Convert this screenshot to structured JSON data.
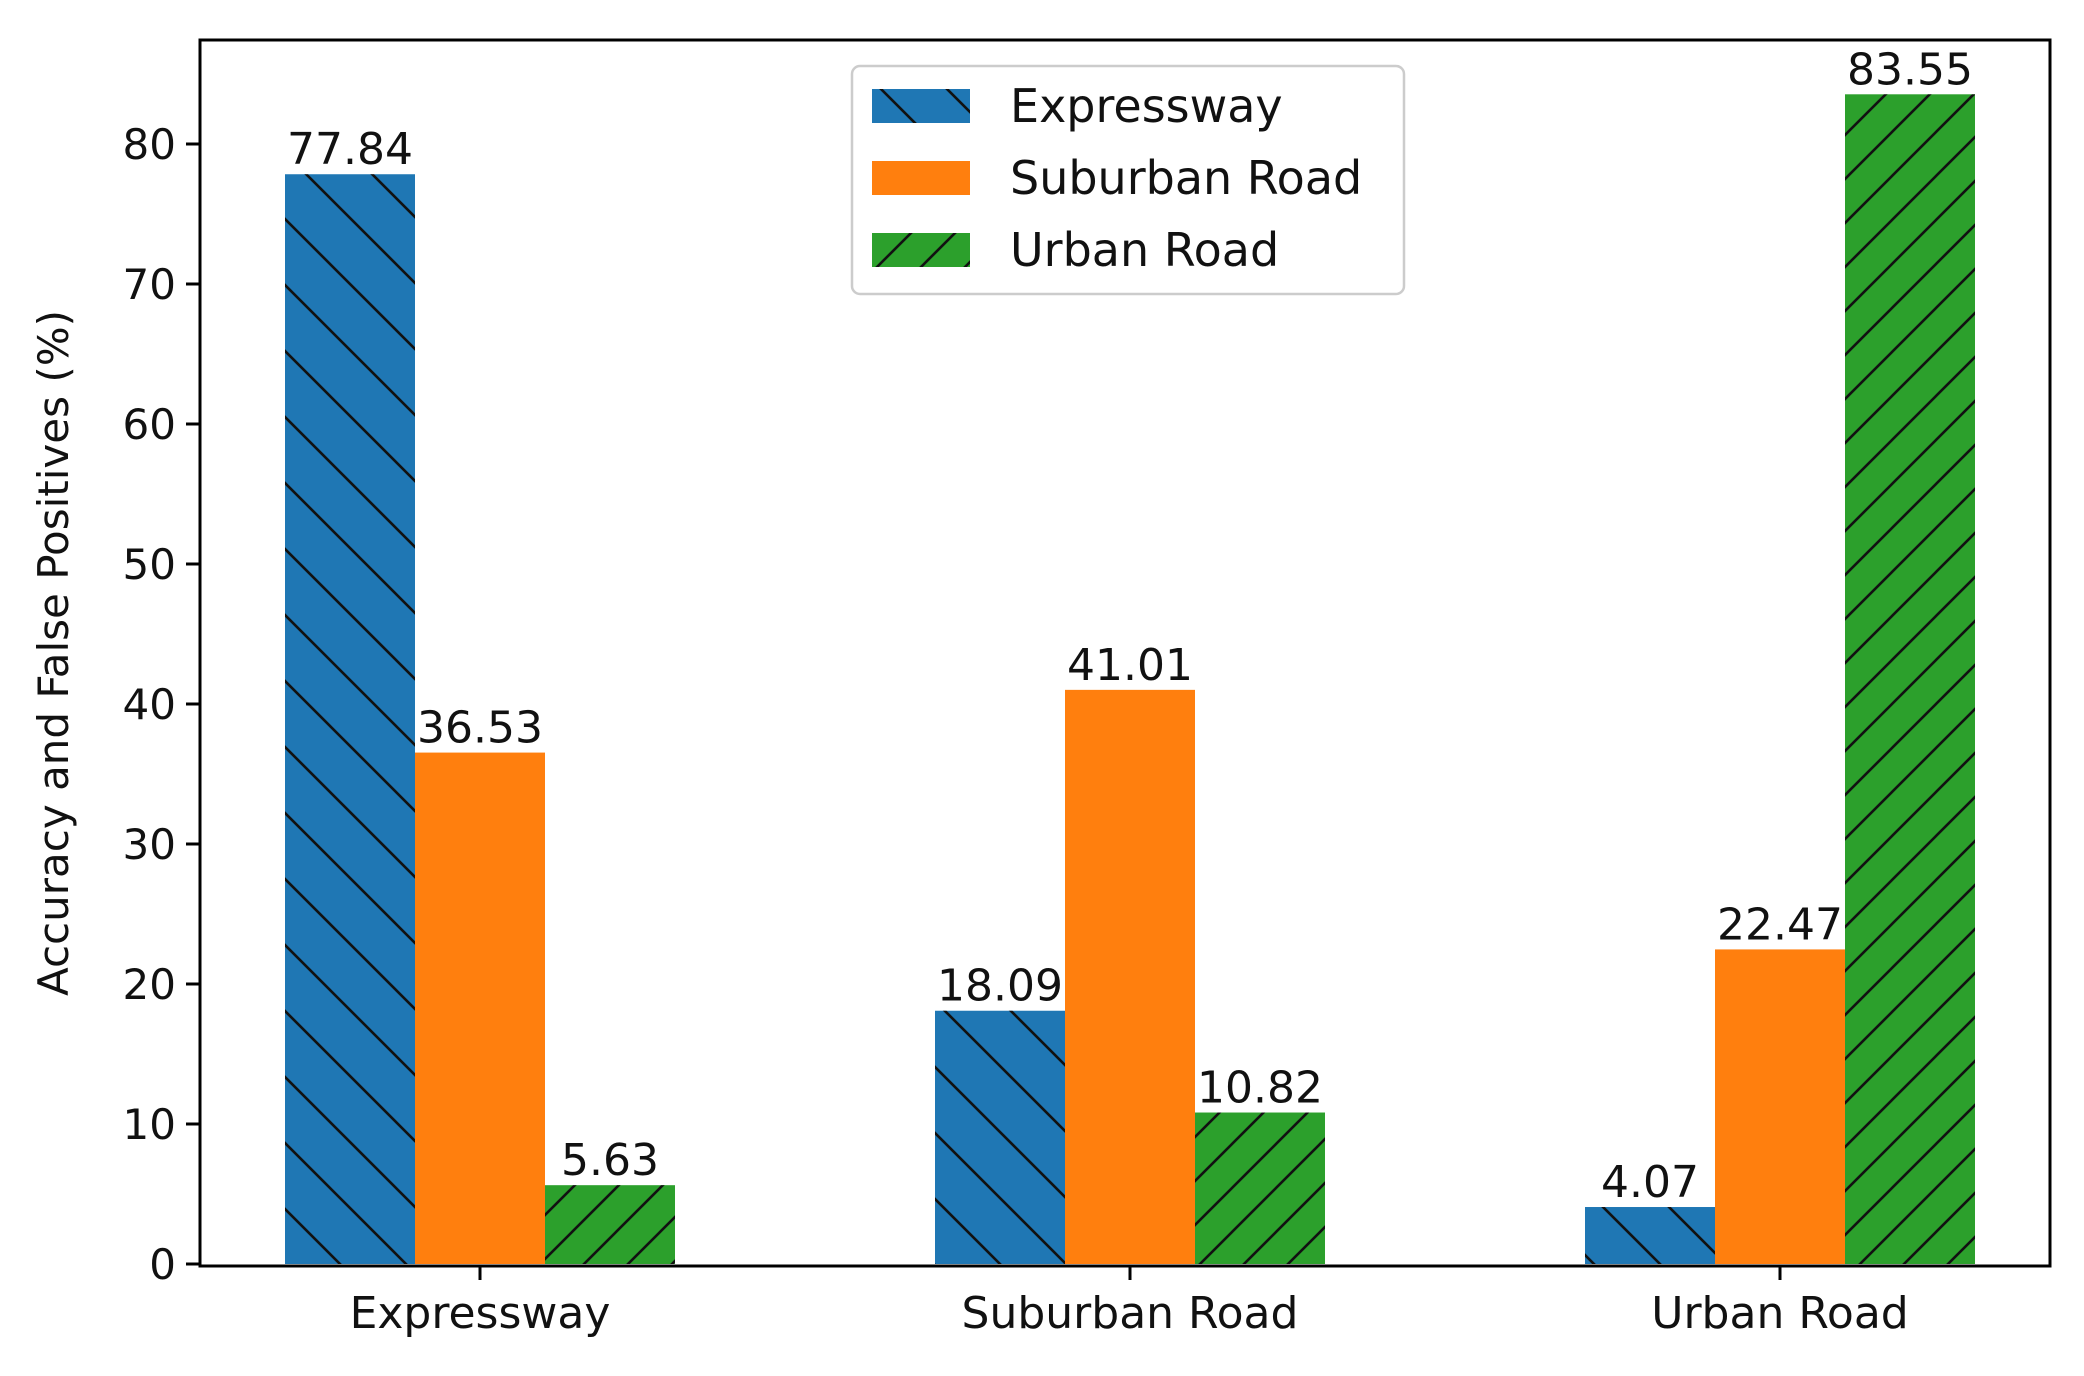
{
  "chart_data": {
    "type": "bar",
    "title": "",
    "xlabel": "",
    "ylabel": "Accuracy and False Positives (%)",
    "categories": [
      "Expressway",
      "Suburban Road",
      "Urban Road"
    ],
    "ylim": [
      0,
      88
    ],
    "yticks": [
      0,
      10,
      20,
      30,
      40,
      50,
      60,
      70,
      80
    ],
    "grid": false,
    "legend_position": "top-center",
    "series": [
      {
        "name": "Expressway",
        "color": "#1f77b4",
        "hatch": "backslash",
        "values": [
          77.84,
          18.09,
          4.07
        ],
        "labels": [
          "77.84",
          "18.09",
          "4.07"
        ]
      },
      {
        "name": "Suburban Road",
        "color": "#ff7f0e",
        "hatch": "none",
        "values": [
          36.53,
          41.01,
          22.47
        ],
        "labels": [
          "36.53",
          "41.01",
          "22.47"
        ]
      },
      {
        "name": "Urban Road",
        "color": "#2ca02c",
        "hatch": "slash",
        "values": [
          5.63,
          10.82,
          83.55
        ],
        "labels": [
          "5.63",
          "10.82",
          "83.55"
        ]
      }
    ]
  }
}
